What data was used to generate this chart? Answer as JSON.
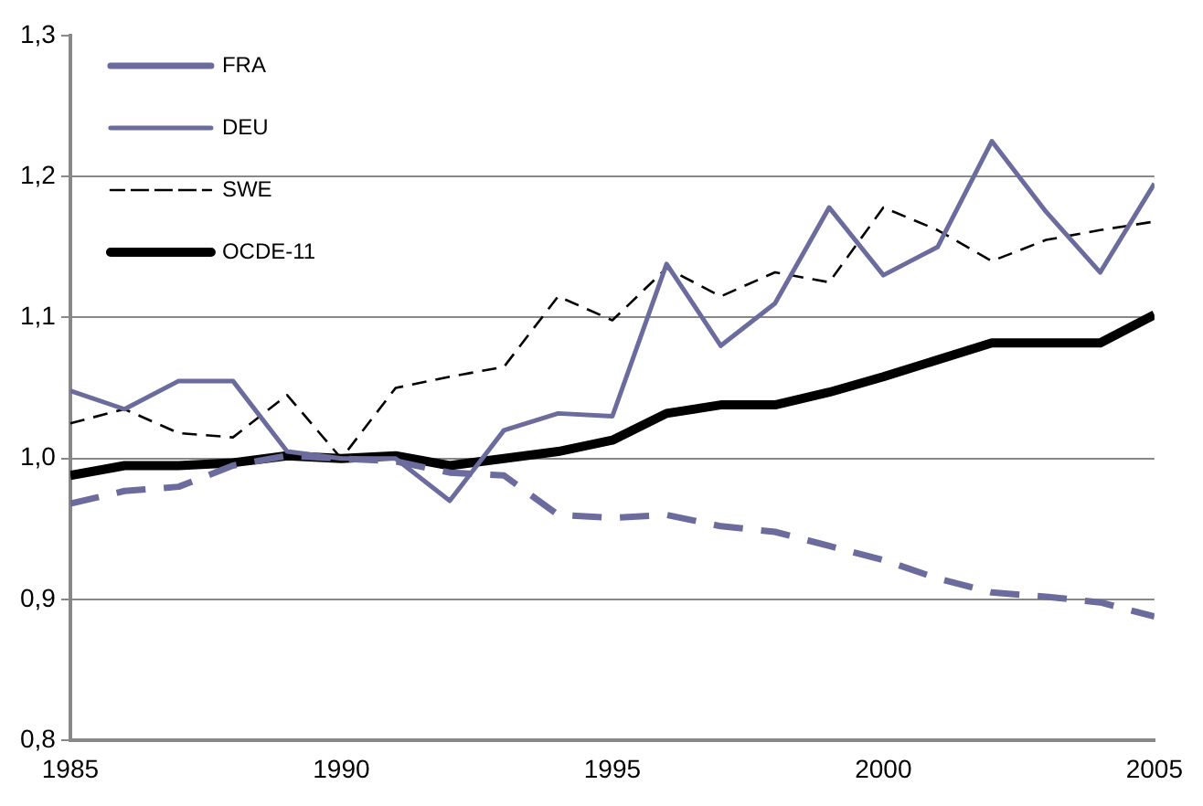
{
  "chart_data": {
    "type": "line",
    "x": [
      1985,
      1986,
      1987,
      1988,
      1989,
      1990,
      1991,
      1992,
      1993,
      1994,
      1995,
      1996,
      1997,
      1998,
      1999,
      2000,
      2001,
      2002,
      2003,
      2004,
      2005
    ],
    "xlim": [
      1985,
      2005
    ],
    "xticks": [
      1985,
      1990,
      1995,
      2000,
      2005
    ],
    "ylim": [
      0.8,
      1.3
    ],
    "yticks": [
      {
        "value": 0.8,
        "label": "0,8"
      },
      {
        "value": 0.9,
        "label": "0,9"
      },
      {
        "value": 1.0,
        "label": "1,0"
      },
      {
        "value": 1.1,
        "label": "1,1"
      },
      {
        "value": 1.2,
        "label": "1,2"
      },
      {
        "value": 1.3,
        "label": "1,3"
      }
    ],
    "grid": "y",
    "legend": "top left",
    "marker": "none",
    "series": [
      {
        "name": "FRA",
        "color": "#6b6b9e",
        "line_style": "dashed",
        "values": [
          0.968,
          0.977,
          0.98,
          0.995,
          1.002,
          1.0,
          0.998,
          0.99,
          0.988,
          0.96,
          0.958,
          0.96,
          0.952,
          0.948,
          0.938,
          0.928,
          0.915,
          0.905,
          0.902,
          0.898,
          0.888
        ]
      },
      {
        "name": "DEU",
        "color": "#6b6b9e",
        "line_style": "solid",
        "values": [
          1.048,
          1.035,
          1.055,
          1.055,
          1.005,
          1.0,
          1.0,
          0.97,
          1.02,
          1.032,
          1.03,
          1.138,
          1.08,
          1.11,
          1.178,
          1.13,
          1.15,
          1.225,
          1.175,
          1.132,
          1.195
        ]
      },
      {
        "name": "SWE",
        "color": "#000000",
        "line_style": "dashed",
        "values": [
          1.025,
          1.035,
          1.018,
          1.015,
          1.045,
          1.0,
          1.05,
          1.058,
          1.065,
          1.115,
          1.098,
          1.135,
          1.115,
          1.132,
          1.125,
          1.178,
          1.162,
          1.14,
          1.155,
          1.162,
          1.168
        ]
      },
      {
        "name": "OCDE-11",
        "color": "#000000",
        "line_style": "solid",
        "values": [
          0.988,
          0.995,
          0.995,
          0.997,
          1.002,
          1.0,
          1.002,
          0.995,
          1.0,
          1.005,
          1.013,
          1.032,
          1.038,
          1.038,
          1.047,
          1.058,
          1.07,
          1.082,
          1.082,
          1.082,
          1.102
        ]
      }
    ]
  }
}
